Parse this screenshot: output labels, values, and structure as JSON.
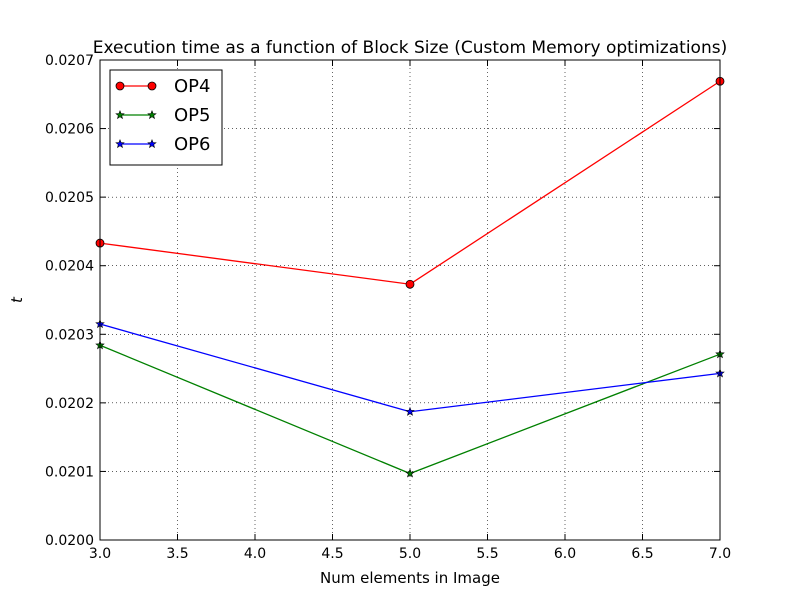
{
  "chart_data": {
    "type": "line",
    "title": "Execution time as a function of Block Size (Custom Memory optimizations)",
    "xlabel": "Num elements in Image",
    "ylabel": "t",
    "xlim": [
      3.0,
      7.0
    ],
    "ylim": [
      0.02,
      0.0207
    ],
    "x_ticks": [
      "3.0",
      "3.5",
      "4.0",
      "4.5",
      "5.0",
      "5.5",
      "6.0",
      "6.5",
      "7.0"
    ],
    "y_ticks": [
      "0.0200",
      "0.0201",
      "0.0202",
      "0.0203",
      "0.0204",
      "0.0205",
      "0.0206",
      "0.0207"
    ],
    "grid": true,
    "legend_position": "top-left",
    "series": [
      {
        "name": "OP4",
        "color": "#ff0000",
        "marker": "circle",
        "x": [
          3,
          5,
          7
        ],
        "y": [
          0.020433,
          0.020373,
          0.020669
        ]
      },
      {
        "name": "OP5",
        "color": "#008000",
        "marker": "star",
        "x": [
          3,
          5,
          7
        ],
        "y": [
          0.020284,
          0.020097,
          0.020271
        ]
      },
      {
        "name": "OP6",
        "color": "#0000ff",
        "marker": "star",
        "x": [
          3,
          5,
          7
        ],
        "y": [
          0.020315,
          0.020187,
          0.020243
        ]
      }
    ]
  }
}
